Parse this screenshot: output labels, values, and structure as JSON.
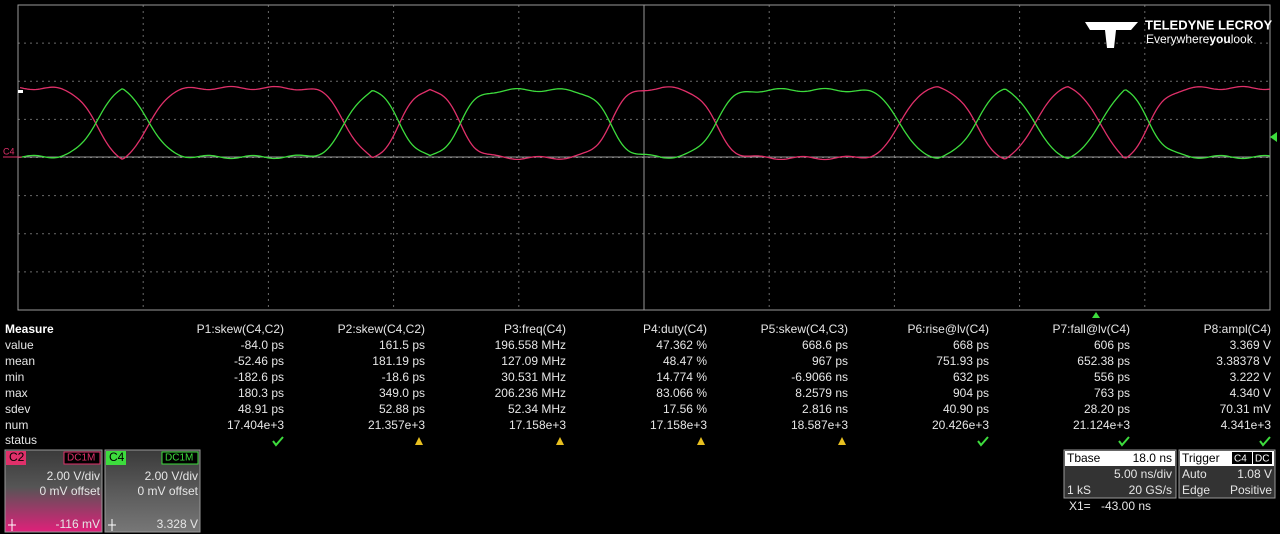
{
  "logo": {
    "brand": "TELEDYNE LECROY",
    "tagline": [
      "Everywhere",
      "you",
      "look"
    ]
  },
  "trace_label": "C4",
  "measure": {
    "title": "Measure",
    "columns": [
      "P1:skew(C4,C2)",
      "P2:skew(C4,C2)",
      "P3:freq(C4)",
      "P4:duty(C4)",
      "P5:skew(C4,C3)",
      "P6:rise@lv(C4)",
      "P7:fall@lv(C4)",
      "P8:ampl(C4)"
    ],
    "rows": [
      {
        "label": "value",
        "cells": [
          "-84.0 ps",
          "161.5 ps",
          "196.558 MHz",
          "47.362 %",
          "668.6 ps",
          "668 ps",
          "606 ps",
          "3.369 V"
        ]
      },
      {
        "label": "mean",
        "cells": [
          "-52.46 ps",
          "181.19 ps",
          "127.09 MHz",
          "48.47 %",
          "967 ps",
          "751.93 ps",
          "652.38 ps",
          "3.38378 V"
        ]
      },
      {
        "label": "min",
        "cells": [
          "-182.6 ps",
          "-18.6 ps",
          "30.531 MHz",
          "14.774 %",
          "-6.9066 ns",
          "632 ps",
          "556 ps",
          "3.222 V"
        ]
      },
      {
        "label": "max",
        "cells": [
          "180.3 ps",
          "349.0 ps",
          "206.236 MHz",
          "83.066 %",
          "8.2579 ns",
          "904 ps",
          "763 ps",
          "4.340 V"
        ]
      },
      {
        "label": "sdev",
        "cells": [
          "48.91 ps",
          "52.88 ps",
          "52.34 MHz",
          "17.56 %",
          "2.816 ns",
          "40.90 ps",
          "28.20 ps",
          "70.31 mV"
        ]
      },
      {
        "label": "num",
        "cells": [
          "17.404e+3",
          "21.357e+3",
          "17.158e+3",
          "17.158e+3",
          "18.587e+3",
          "20.426e+3",
          "21.124e+3",
          "4.341e+3"
        ]
      }
    ],
    "status_label": "status"
  },
  "channels": [
    {
      "name": "C2",
      "coupling": "DC1M",
      "scale": "2.00 V/div",
      "offset": "0 mV offset",
      "reading": "-116 mV"
    },
    {
      "name": "C4",
      "coupling": "DC1M",
      "scale": "2.00 V/div",
      "offset": "0 mV offset",
      "reading": "3.328 V"
    }
  ],
  "timebase": {
    "title": "Tbase",
    "delay": "18.0 ns",
    "scale": "5.00 ns/div",
    "samples": "1 kS",
    "rate": "20 GS/s"
  },
  "trigger": {
    "title": "Trigger",
    "source": "C4",
    "coupling": "DC",
    "mode": "Auto",
    "level": "1.08 V",
    "type": "Edge",
    "slope": "Positive"
  },
  "cursor": {
    "label": "X1=",
    "value": "-43.00 ns"
  }
}
